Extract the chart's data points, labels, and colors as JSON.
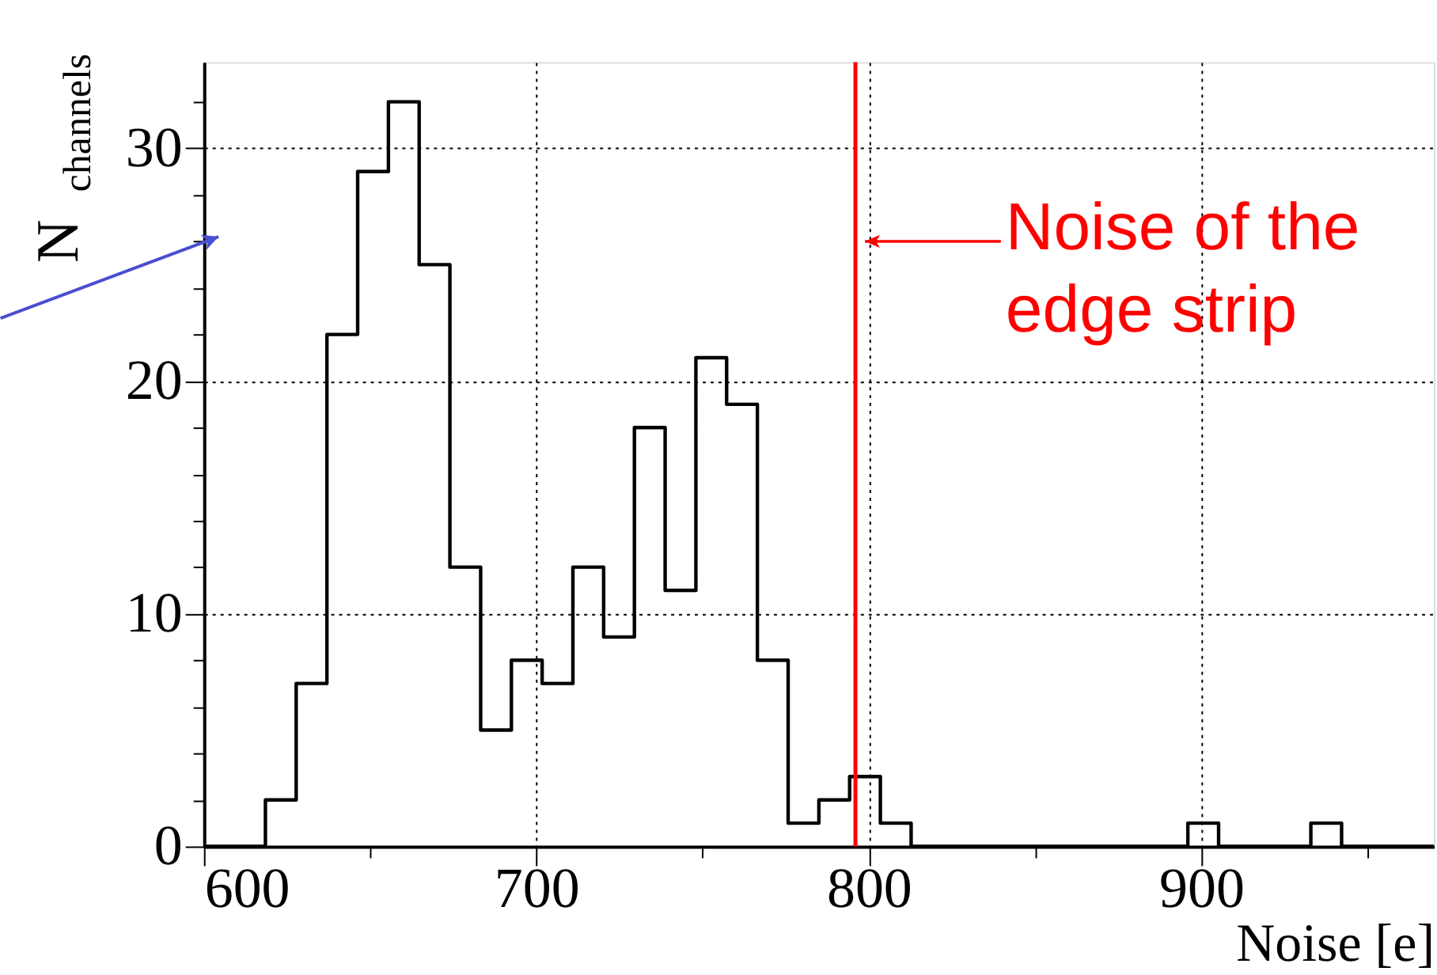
{
  "chart_data": {
    "type": "histogram",
    "bins": [
      600,
      609.25,
      618.5,
      627.75,
      637,
      646.25,
      655.5,
      664.75,
      674,
      683.25,
      692.5,
      701.75,
      711,
      720.25,
      729.5,
      738.75,
      748,
      757.25,
      766.5,
      775.75,
      785,
      794.25,
      803.5,
      812.75,
      822,
      831.25,
      840.5,
      849.75,
      859,
      868.25,
      877.5,
      886.75,
      896,
      905.25,
      914.5,
      923.75,
      933,
      942.25,
      951.5,
      960.75,
      970
    ],
    "values": [
      0,
      0,
      2,
      7,
      22,
      29,
      32,
      25,
      12,
      5,
      8,
      7,
      12,
      9,
      18,
      11,
      21,
      19,
      8,
      1,
      2,
      3,
      1,
      0,
      0,
      0,
      0,
      0,
      0,
      0,
      0,
      0,
      1,
      0,
      0,
      0,
      1,
      0,
      0,
      0
    ],
    "color": "#000000",
    "xlim": [
      600,
      970
    ],
    "xticks": [
      600,
      {
        "value": 650,
        "label": null
      },
      700,
      {
        "value": 750,
        "label": null
      },
      800,
      {
        "value": 850,
        "label": null
      },
      900,
      {
        "value": 950,
        "label": null
      }
    ],
    "ylim": [
      0,
      33.7
    ],
    "yticks": [
      0,
      {
        "value": 2,
        "label": null
      },
      {
        "value": 4,
        "label": null
      },
      {
        "value": 6,
        "label": null
      },
      {
        "value": 8,
        "label": null
      },
      10,
      {
        "value": 12,
        "label": null
      },
      {
        "value": 14,
        "label": null
      },
      {
        "value": 16,
        "label": null
      },
      {
        "value": 18,
        "label": null
      },
      20,
      {
        "value": 22,
        "label": null
      },
      {
        "value": 24,
        "label": null
      },
      {
        "value": 26,
        "label": null
      },
      {
        "value": 28,
        "label": null
      },
      30,
      {
        "value": 32,
        "label": null
      }
    ],
    "xlabel": "Noise [e]",
    "ylabel": "N$_{channels}$",
    "grid": true,
    "ref_lines": [
      {
        "axis": "x",
        "value": 796,
        "color": "#ff0000"
      }
    ],
    "annotations": [
      {
        "text": "Noise of the\nedge strip",
        "x": 796,
        "y": 26
      }
    ]
  }
}
